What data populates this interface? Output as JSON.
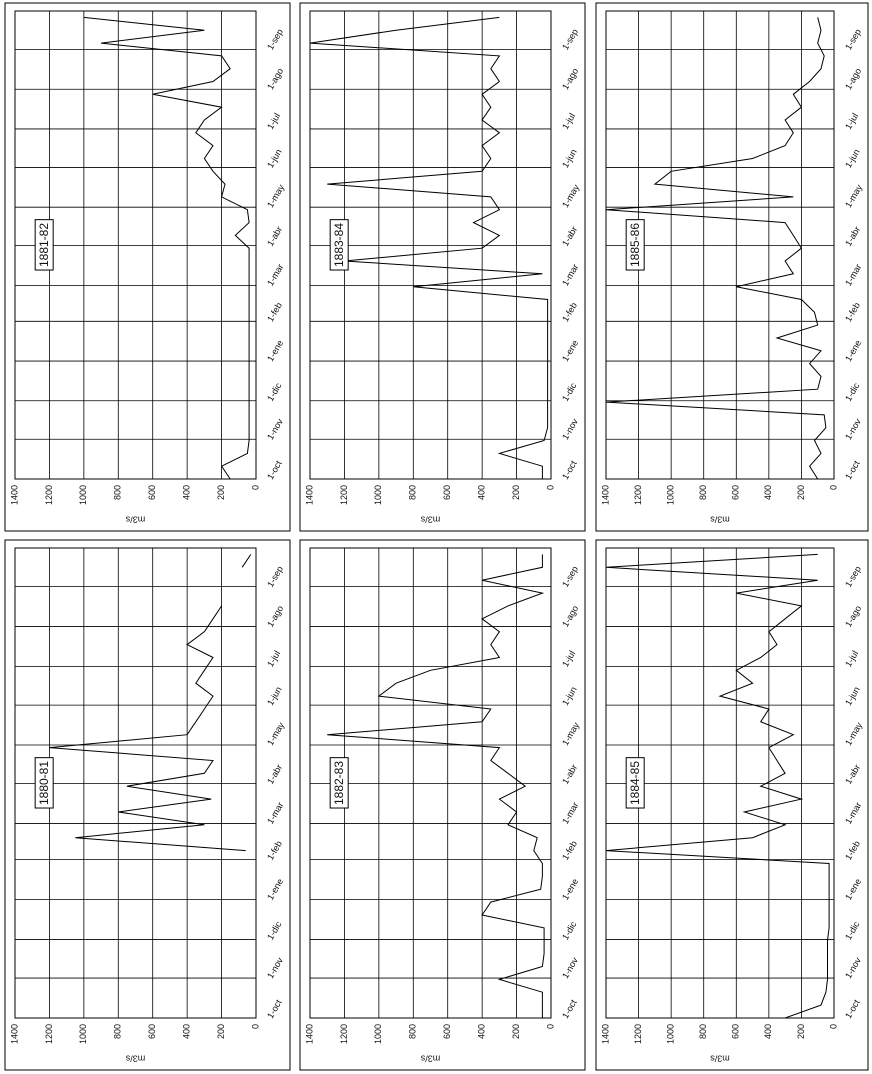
{
  "chart_data": [
    {
      "type": "line",
      "title": "1881-82",
      "y_label": "m3/s",
      "color": "#000000",
      "grid": true,
      "x": [
        0,
        10,
        20,
        30,
        40,
        50,
        60,
        70,
        80,
        90,
        100,
        110,
        120,
        130,
        140,
        150,
        160,
        170,
        180,
        190,
        200,
        210,
        220,
        230,
        240,
        250,
        260,
        270,
        280,
        290,
        300,
        310,
        320,
        330,
        340,
        350,
        360
      ],
      "values": [
        150,
        200,
        50,
        40,
        40,
        40,
        40,
        40,
        40,
        40,
        40,
        40,
        40,
        40,
        40,
        40,
        40,
        40,
        40,
        120,
        40,
        50,
        200,
        180,
        250,
        300,
        250,
        350,
        300,
        200,
        600,
        250,
        150,
        200,
        900,
        300,
        1000
      ],
      "xlim": [
        0,
        365
      ],
      "ylim": [
        0,
        1400
      ],
      "yticks": [
        0,
        200,
        400,
        600,
        800,
        1000,
        1200,
        1400
      ],
      "xticks": [
        {
          "value": 0,
          "label": "1-oct"
        },
        {
          "value": 31,
          "label": "1-nov"
        },
        {
          "value": 61,
          "label": "1-dic"
        },
        {
          "value": 92,
          "label": "1-ene"
        },
        {
          "value": 123,
          "label": "1-feb"
        },
        {
          "value": 151,
          "label": "1-mar"
        },
        {
          "value": 182,
          "label": "1-abr"
        },
        {
          "value": 212,
          "label": "1-may"
        },
        {
          "value": 243,
          "label": "1-jun"
        },
        {
          "value": 273,
          "label": "1-jul"
        },
        {
          "value": 304,
          "label": "1-ago"
        },
        {
          "value": 335,
          "label": "1-sep"
        }
      ]
    },
    {
      "type": "line",
      "title": "1883-84",
      "y_label": "m3/s",
      "color": "#000000",
      "grid": true,
      "x": [
        0,
        10,
        20,
        30,
        40,
        50,
        60,
        70,
        80,
        90,
        100,
        110,
        120,
        130,
        140,
        150,
        160,
        170,
        180,
        190,
        200,
        210,
        220,
        230,
        240,
        250,
        260,
        270,
        280,
        290,
        300,
        310,
        320,
        330,
        340,
        350,
        360
      ],
      "values": [
        50,
        50,
        300,
        40,
        20,
        20,
        20,
        20,
        20,
        20,
        20,
        20,
        20,
        20,
        20,
        800,
        50,
        1200,
        400,
        300,
        450,
        300,
        350,
        1300,
        400,
        350,
        400,
        300,
        400,
        350,
        400,
        300,
        350,
        300,
        1400,
        900,
        300
      ],
      "xlim": [
        0,
        365
      ],
      "ylim": [
        0,
        1400
      ],
      "yticks": [
        0,
        200,
        400,
        600,
        800,
        1000,
        1200,
        1400
      ],
      "xticks": [
        {
          "value": 0,
          "label": "1-oct"
        },
        {
          "value": 31,
          "label": "1-nov"
        },
        {
          "value": 61,
          "label": "1-dic"
        },
        {
          "value": 92,
          "label": "1-ene"
        },
        {
          "value": 123,
          "label": "1-feb"
        },
        {
          "value": 151,
          "label": "1-mar"
        },
        {
          "value": 182,
          "label": "1-abr"
        },
        {
          "value": 212,
          "label": "1-may"
        },
        {
          "value": 243,
          "label": "1-jun"
        },
        {
          "value": 273,
          "label": "1-jul"
        },
        {
          "value": 304,
          "label": "1-ago"
        },
        {
          "value": 335,
          "label": "1-sep"
        }
      ]
    },
    {
      "type": "line",
      "title": "1885-86",
      "y_label": "m3/s",
      "color": "#000000",
      "grid": true,
      "x": [
        0,
        10,
        20,
        30,
        40,
        50,
        60,
        70,
        80,
        90,
        100,
        110,
        120,
        130,
        140,
        150,
        160,
        170,
        180,
        190,
        200,
        210,
        220,
        230,
        240,
        250,
        260,
        270,
        280,
        290,
        300,
        310,
        320,
        330,
        340,
        350,
        360
      ],
      "values": [
        100,
        150,
        80,
        120,
        50,
        60,
        1400,
        100,
        80,
        150,
        80,
        350,
        100,
        120,
        200,
        600,
        250,
        300,
        200,
        250,
        300,
        1400,
        250,
        1100,
        1000,
        500,
        300,
        250,
        300,
        200,
        250,
        150,
        80,
        60,
        100,
        80,
        100
      ],
      "xlim": [
        0,
        365
      ],
      "ylim": [
        0,
        1400
      ],
      "yticks": [
        0,
        200,
        400,
        600,
        800,
        1000,
        1200,
        1400
      ],
      "xticks": [
        {
          "value": 0,
          "label": "1-oct"
        },
        {
          "value": 31,
          "label": "1-nov"
        },
        {
          "value": 61,
          "label": "1-dic"
        },
        {
          "value": 92,
          "label": "1-ene"
        },
        {
          "value": 123,
          "label": "1-feb"
        },
        {
          "value": 151,
          "label": "1-mar"
        },
        {
          "value": 182,
          "label": "1-abr"
        },
        {
          "value": 212,
          "label": "1-may"
        },
        {
          "value": 243,
          "label": "1-jun"
        },
        {
          "value": 273,
          "label": "1-jul"
        },
        {
          "value": 304,
          "label": "1-ago"
        },
        {
          "value": 335,
          "label": "1-sep"
        }
      ]
    },
    {
      "type": "line",
      "title": "1880-81",
      "y_label": "m3/s",
      "color": "#000000",
      "grid": true,
      "x": [
        0,
        10,
        20,
        30,
        40,
        50,
        60,
        70,
        80,
        90,
        100,
        110,
        120,
        130,
        140,
        150,
        160,
        170,
        180,
        190,
        200,
        210,
        220,
        230,
        240,
        250,
        260,
        270,
        280,
        290,
        300,
        310,
        320,
        330,
        340,
        350,
        360
      ],
      "values": [
        null,
        null,
        null,
        null,
        null,
        null,
        null,
        null,
        null,
        null,
        null,
        null,
        null,
        60,
        1050,
        300,
        800,
        260,
        750,
        300,
        250,
        1200,
        400,
        350,
        300,
        250,
        350,
        300,
        250,
        400,
        300,
        250,
        200,
        null,
        null,
        80,
        30
      ],
      "xlim": [
        0,
        365
      ],
      "ylim": [
        0,
        1400
      ],
      "yticks": [
        0,
        200,
        400,
        600,
        800,
        1000,
        1200,
        1400
      ],
      "xticks": [
        {
          "value": 0,
          "label": "1-oct"
        },
        {
          "value": 31,
          "label": "1-nov"
        },
        {
          "value": 61,
          "label": "1-dic"
        },
        {
          "value": 92,
          "label": "1-ene"
        },
        {
          "value": 123,
          "label": "1-feb"
        },
        {
          "value": 151,
          "label": "1-mar"
        },
        {
          "value": 182,
          "label": "1-abr"
        },
        {
          "value": 212,
          "label": "1-may"
        },
        {
          "value": 243,
          "label": "1-jun"
        },
        {
          "value": 273,
          "label": "1-jul"
        },
        {
          "value": 304,
          "label": "1-ago"
        },
        {
          "value": 335,
          "label": "1-sep"
        }
      ]
    },
    {
      "type": "line",
      "title": "1882-83",
      "y_label": "m3/s",
      "color": "#000000",
      "grid": true,
      "x": [
        0,
        10,
        20,
        30,
        40,
        50,
        60,
        70,
        80,
        90,
        100,
        110,
        120,
        130,
        140,
        150,
        160,
        170,
        180,
        190,
        200,
        210,
        220,
        230,
        240,
        250,
        260,
        270,
        280,
        290,
        300,
        310,
        320,
        330,
        340,
        350,
        360
      ],
      "values": [
        50,
        50,
        50,
        300,
        50,
        40,
        40,
        40,
        400,
        350,
        60,
        50,
        50,
        100,
        80,
        250,
        200,
        300,
        150,
        250,
        350,
        300,
        1300,
        400,
        350,
        1000,
        900,
        700,
        300,
        350,
        300,
        400,
        250,
        50,
        400,
        50,
        50
      ],
      "xlim": [
        0,
        365
      ],
      "ylim": [
        0,
        1400
      ],
      "yticks": [
        0,
        200,
        400,
        600,
        800,
        1000,
        1200,
        1400
      ],
      "xticks": [
        {
          "value": 0,
          "label": "1-oct"
        },
        {
          "value": 31,
          "label": "1-nov"
        },
        {
          "value": 61,
          "label": "1-dic"
        },
        {
          "value": 92,
          "label": "1-ene"
        },
        {
          "value": 123,
          "label": "1-feb"
        },
        {
          "value": 151,
          "label": "1-mar"
        },
        {
          "value": 182,
          "label": "1-abr"
        },
        {
          "value": 212,
          "label": "1-may"
        },
        {
          "value": 243,
          "label": "1-jun"
        },
        {
          "value": 273,
          "label": "1-jul"
        },
        {
          "value": 304,
          "label": "1-ago"
        },
        {
          "value": 335,
          "label": "1-sep"
        }
      ]
    },
    {
      "type": "line",
      "title": "1884-85",
      "y_label": "m3/s",
      "color": "#000000",
      "grid": true,
      "x": [
        0,
        10,
        20,
        30,
        40,
        50,
        60,
        70,
        80,
        90,
        100,
        110,
        120,
        130,
        140,
        150,
        160,
        170,
        180,
        190,
        200,
        210,
        220,
        230,
        240,
        250,
        260,
        270,
        280,
        290,
        300,
        310,
        320,
        330,
        340,
        350,
        360
      ],
      "values": [
        300,
        80,
        50,
        40,
        40,
        40,
        40,
        30,
        30,
        30,
        30,
        30,
        30,
        1400,
        500,
        300,
        550,
        200,
        450,
        300,
        350,
        400,
        250,
        450,
        400,
        700,
        500,
        600,
        450,
        350,
        400,
        300,
        200,
        600,
        100,
        1400,
        100
      ],
      "xlim": [
        0,
        365
      ],
      "ylim": [
        0,
        1400
      ],
      "yticks": [
        0,
        200,
        400,
        600,
        800,
        1000,
        1200,
        1400
      ],
      "xticks": [
        {
          "value": 0,
          "label": "1-oct"
        },
        {
          "value": 31,
          "label": "1-nov"
        },
        {
          "value": 61,
          "label": "1-dic"
        },
        {
          "value": 92,
          "label": "1-ene"
        },
        {
          "value": 123,
          "label": "1-feb"
        },
        {
          "value": 151,
          "label": "1-mar"
        },
        {
          "value": 182,
          "label": "1-abr"
        },
        {
          "value": 212,
          "label": "1-may"
        },
        {
          "value": 243,
          "label": "1-jun"
        },
        {
          "value": 273,
          "label": "1-jul"
        },
        {
          "value": 304,
          "label": "1-ago"
        },
        {
          "value": 335,
          "label": "1-sep"
        }
      ]
    }
  ]
}
